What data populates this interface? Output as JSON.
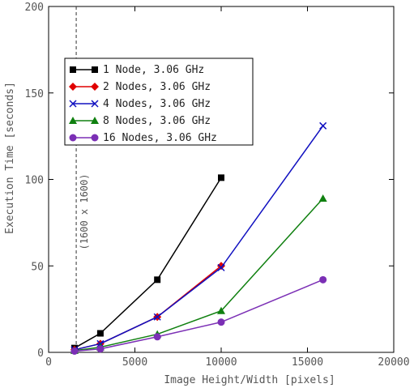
{
  "chart_data": {
    "type": "line",
    "title": "",
    "xlabel": "Image Height/Width [pixels]",
    "ylabel": "Execution Time [seconds]",
    "xlim": [
      0,
      20000
    ],
    "ylim": [
      0,
      200
    ],
    "x_ticks": [
      0,
      5000,
      10000,
      15000,
      20000
    ],
    "y_ticks": [
      0,
      50,
      100,
      150,
      200
    ],
    "x_tick_labels": [
      "0",
      "5000",
      "10000",
      "15000",
      "20000"
    ],
    "y_tick_labels": [
      "0",
      "50",
      "100",
      "150",
      "200"
    ],
    "grid": false,
    "legend_position": "top-left",
    "annotation": {
      "x": 1600,
      "label": "(1600 x 1600)"
    },
    "series": [
      {
        "name": "1 Node, 3.06 GHz",
        "color": "#000000",
        "marker": "square",
        "points": [
          [
            1500,
            2.5
          ],
          [
            3000,
            11
          ],
          [
            6300,
            42
          ],
          [
            10000,
            101
          ]
        ]
      },
      {
        "name": "2 Nodes, 3.06 GHz",
        "color": "#e00000",
        "marker": "diamond",
        "points": [
          [
            1500,
            1.5
          ],
          [
            3000,
            5
          ],
          [
            6300,
            20.5
          ],
          [
            10000,
            50
          ]
        ]
      },
      {
        "name": "4 Nodes, 3.06 GHz",
        "color": "#1010c0",
        "marker": "x",
        "points": [
          [
            1500,
            1.5
          ],
          [
            3000,
            5
          ],
          [
            6300,
            20.5
          ],
          [
            10000,
            49
          ],
          [
            15900,
            131
          ]
        ]
      },
      {
        "name": "8 Nodes, 3.06 GHz",
        "color": "#108010",
        "marker": "triangle",
        "points": [
          [
            1500,
            1
          ],
          [
            3000,
            3
          ],
          [
            6300,
            10.5
          ],
          [
            10000,
            24
          ],
          [
            15900,
            89
          ]
        ]
      },
      {
        "name": "16 Nodes, 3.06 GHz",
        "color": "#7b2fb5",
        "marker": "circle",
        "points": [
          [
            1500,
            0.7
          ],
          [
            3000,
            2
          ],
          [
            6300,
            9
          ],
          [
            10000,
            17.5
          ],
          [
            15900,
            42
          ]
        ]
      }
    ]
  }
}
